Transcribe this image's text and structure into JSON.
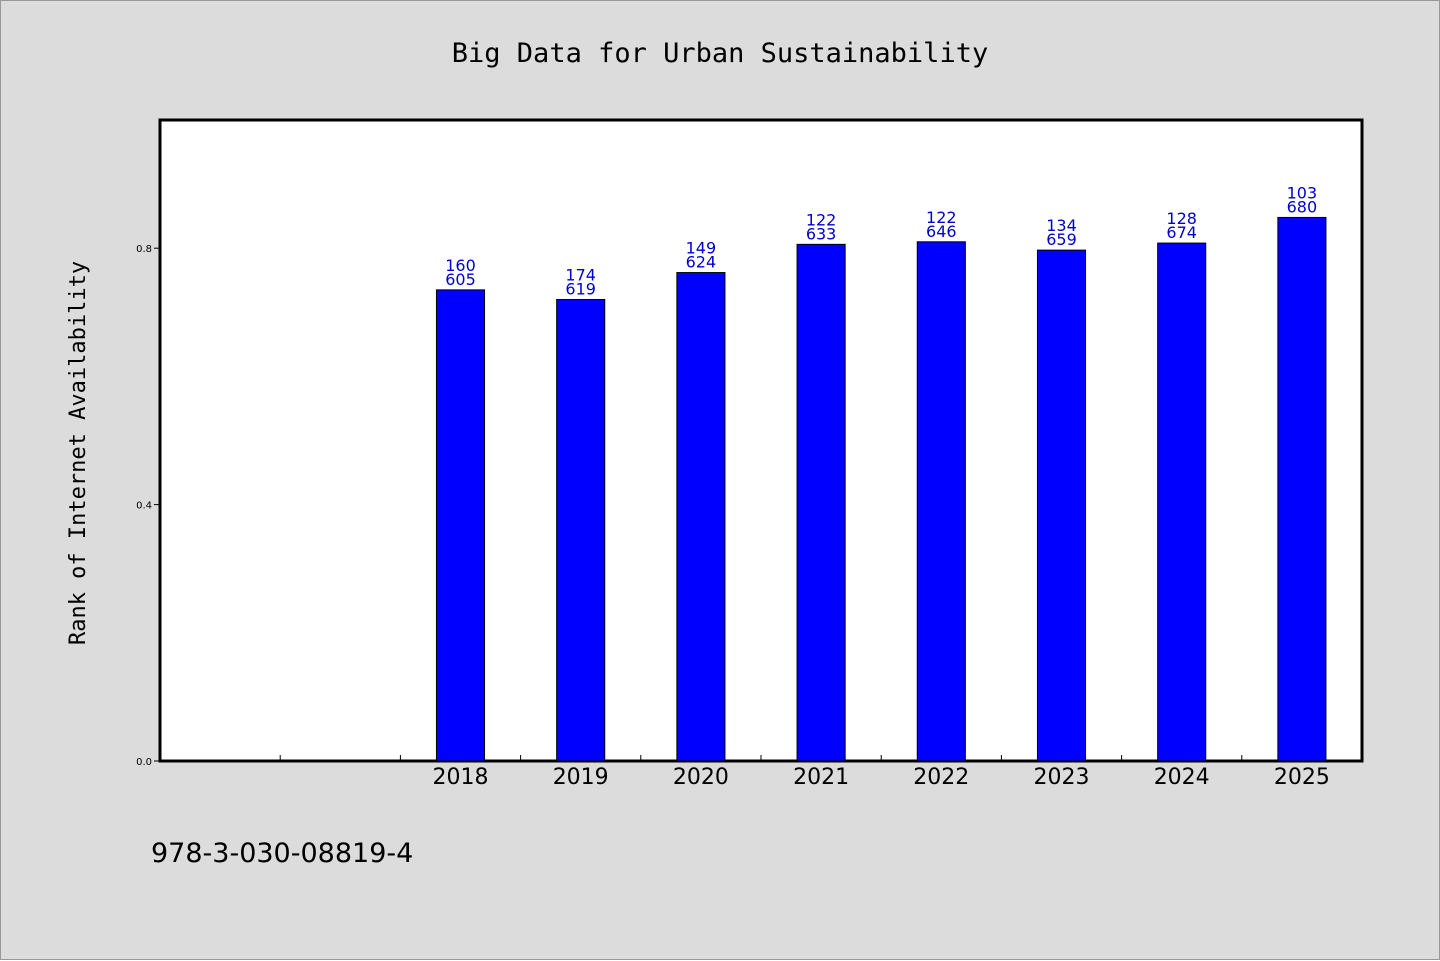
{
  "chart_data": {
    "type": "bar",
    "title": "Big Data for Urban Sustainability",
    "xlabel": "",
    "ylabel": "Rank of Internet Availability",
    "categories": [
      "",
      "",
      "2018",
      "2019",
      "2020",
      "2021",
      "2022",
      "2023",
      "2024",
      "2025"
    ],
    "values": [
      null,
      null,
      0.735,
      0.72,
      0.762,
      0.806,
      0.81,
      0.797,
      0.808,
      0.848
    ],
    "data_labels": [
      null,
      null,
      [
        "160",
        "605"
      ],
      [
        "174",
        "619"
      ],
      [
        "149",
        "624"
      ],
      [
        "122",
        "633"
      ],
      [
        "122",
        "646"
      ],
      [
        "134",
        "659"
      ],
      [
        "128",
        "674"
      ],
      [
        "103",
        "680"
      ]
    ],
    "ylim": [
      0,
      1.0
    ],
    "yticks": [
      0.0,
      0.4,
      0.8
    ],
    "ytick_labels": [
      "0.0",
      "0.4",
      "0.8"
    ],
    "grid": false,
    "legend": "none",
    "colors": {
      "bar": "#0000ff",
      "bar_edge": "#000000",
      "label": "#0000cc",
      "background": "#dcdcdc",
      "plot_background": "#ffffff"
    }
  },
  "footer": {
    "isbn": "978-3-030-08819-4"
  }
}
